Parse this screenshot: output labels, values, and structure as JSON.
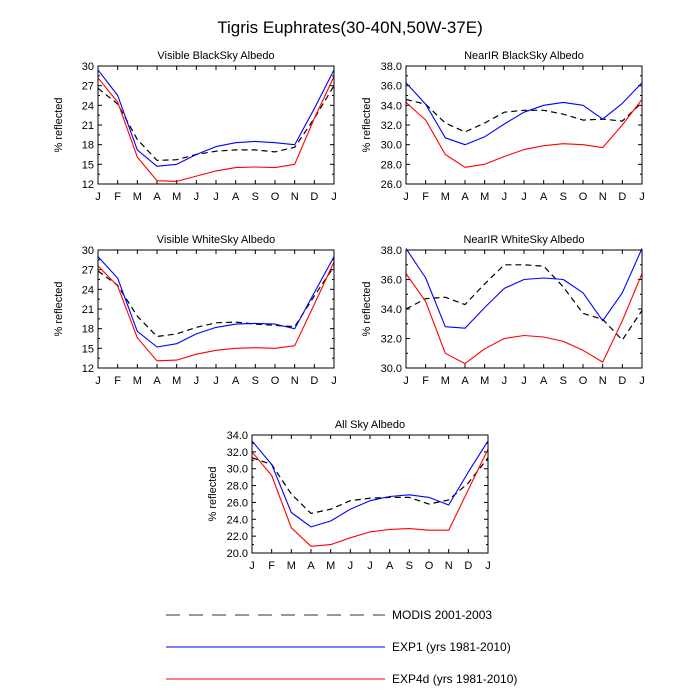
{
  "page_title": "Tigris Euphrates(30-40N,50W-37E)",
  "months": [
    "J",
    "F",
    "M",
    "A",
    "M",
    "J",
    "J",
    "A",
    "S",
    "O",
    "N",
    "D",
    "J"
  ],
  "legend": [
    {
      "label": "MODIS 2001-2003",
      "color": "#000000",
      "style": "dashed"
    },
    {
      "label": "EXP1 (yrs 1981-2010)",
      "color": "#0000ff",
      "style": "solid"
    },
    {
      "label": "EXP4d (yrs 1981-2010)",
      "color": "#ff0000",
      "style": "solid"
    }
  ],
  "chart_data": [
    {
      "type": "line",
      "title": "Visible BlackSky Albedo",
      "ylabel": "% reflected",
      "ylim": [
        12,
        30
      ],
      "yticks": [
        "12",
        "15",
        "18",
        "21",
        "24",
        "27",
        "30"
      ],
      "series": [
        {
          "name": "MODIS 2001-2003",
          "values": [
            26.6,
            24.2,
            18.8,
            15.6,
            15.7,
            16.5,
            17.0,
            17.2,
            17.2,
            16.9,
            17.6,
            22.0,
            27.0
          ]
        },
        {
          "name": "EXP1 (yrs 1981-2010)",
          "values": [
            29.4,
            25.5,
            17.2,
            14.7,
            15.0,
            16.5,
            17.7,
            18.3,
            18.5,
            18.3,
            18.0,
            23.5,
            29.4
          ]
        },
        {
          "name": "EXP4d (yrs 1981-2010)",
          "values": [
            28.2,
            24.5,
            16.1,
            12.5,
            12.4,
            13.2,
            14.0,
            14.5,
            14.6,
            14.5,
            15.0,
            22.0,
            28.4
          ]
        }
      ]
    },
    {
      "type": "line",
      "title": "NearIR BlackSky Albedo",
      "ylabel": "% reflected",
      "ylim": [
        26,
        38
      ],
      "yticks": [
        "26.0",
        "28.0",
        "30.0",
        "32.0",
        "34.0",
        "36.0",
        "38.0"
      ],
      "series": [
        {
          "name": "MODIS 2001-2003",
          "values": [
            34.6,
            34.1,
            32.2,
            31.3,
            32.2,
            33.3,
            33.5,
            33.5,
            33.1,
            32.5,
            32.6,
            32.4,
            34.3
          ]
        },
        {
          "name": "EXP1 (yrs 1981-2010)",
          "values": [
            36.3,
            34.1,
            30.7,
            30.0,
            30.8,
            32.1,
            33.3,
            34.0,
            34.3,
            34.0,
            32.6,
            34.2,
            36.3
          ]
        },
        {
          "name": "EXP4d (yrs 1981-2010)",
          "values": [
            34.3,
            32.5,
            29.0,
            27.7,
            28.0,
            28.8,
            29.5,
            29.9,
            30.1,
            30.0,
            29.7,
            32.0,
            34.6
          ]
        }
      ]
    },
    {
      "type": "line",
      "title": "Visible WhiteSky Albedo",
      "ylabel": "% reflected",
      "ylim": [
        12,
        30
      ],
      "yticks": [
        "12",
        "15",
        "18",
        "21",
        "24",
        "27",
        "30"
      ],
      "series": [
        {
          "name": "MODIS 2001-2003",
          "values": [
            26.8,
            24.6,
            19.9,
            16.8,
            17.2,
            18.2,
            18.9,
            19.0,
            18.7,
            18.5,
            18.3,
            23.0,
            27.5
          ]
        },
        {
          "name": "EXP1 (yrs 1981-2010)",
          "values": [
            29.0,
            25.7,
            17.6,
            15.2,
            15.7,
            17.2,
            18.2,
            18.7,
            18.8,
            18.7,
            18.0,
            23.5,
            29.0
          ]
        },
        {
          "name": "EXP4d (yrs 1981-2010)",
          "values": [
            27.6,
            24.5,
            16.6,
            13.1,
            13.2,
            14.1,
            14.7,
            15.0,
            15.1,
            15.0,
            15.4,
            21.7,
            28.2
          ]
        }
      ]
    },
    {
      "type": "line",
      "title": "NearIR WhiteSky Albedo",
      "ylabel": "% reflected",
      "ylim": [
        30,
        38
      ],
      "yticks": [
        "30.0",
        "32.0",
        "34.0",
        "36.0",
        "38.0"
      ],
      "series": [
        {
          "name": "MODIS 2001-2003",
          "values": [
            34.0,
            34.7,
            34.8,
            34.3,
            35.7,
            37.0,
            37.0,
            36.9,
            35.5,
            33.7,
            33.3,
            31.9,
            33.9
          ]
        },
        {
          "name": "EXP1 (yrs 1981-2010)",
          "values": [
            38.1,
            36.1,
            32.8,
            32.7,
            34.1,
            35.4,
            36.0,
            36.1,
            36.0,
            35.1,
            33.2,
            35.1,
            38.1
          ]
        },
        {
          "name": "EXP4d (yrs 1981-2010)",
          "values": [
            36.4,
            34.5,
            31.0,
            30.3,
            31.3,
            32.0,
            32.2,
            32.1,
            31.8,
            31.2,
            30.4,
            33.2,
            36.4
          ]
        }
      ]
    },
    {
      "type": "line",
      "title": "All Sky Albedo",
      "ylabel": "% reflected",
      "ylim": [
        20,
        34
      ],
      "yticks": [
        "20.0",
        "22.0",
        "24.0",
        "26.0",
        "28.0",
        "30.0",
        "32.0",
        "34.0"
      ],
      "series": [
        {
          "name": "MODIS 2001-2003",
          "values": [
            31.3,
            30.5,
            27.0,
            24.7,
            25.2,
            26.2,
            26.5,
            26.6,
            26.6,
            25.8,
            26.3,
            28.3,
            31.3
          ]
        },
        {
          "name": "EXP1 (yrs 1981-2010)",
          "values": [
            33.3,
            30.5,
            24.8,
            23.1,
            23.8,
            25.2,
            26.2,
            26.7,
            26.9,
            26.6,
            25.7,
            29.6,
            33.3
          ]
        },
        {
          "name": "EXP4d (yrs 1981-2010)",
          "values": [
            32.0,
            29.2,
            23.0,
            20.8,
            21.0,
            21.8,
            22.5,
            22.8,
            22.9,
            22.7,
            22.7,
            27.5,
            32.3
          ]
        }
      ]
    }
  ]
}
